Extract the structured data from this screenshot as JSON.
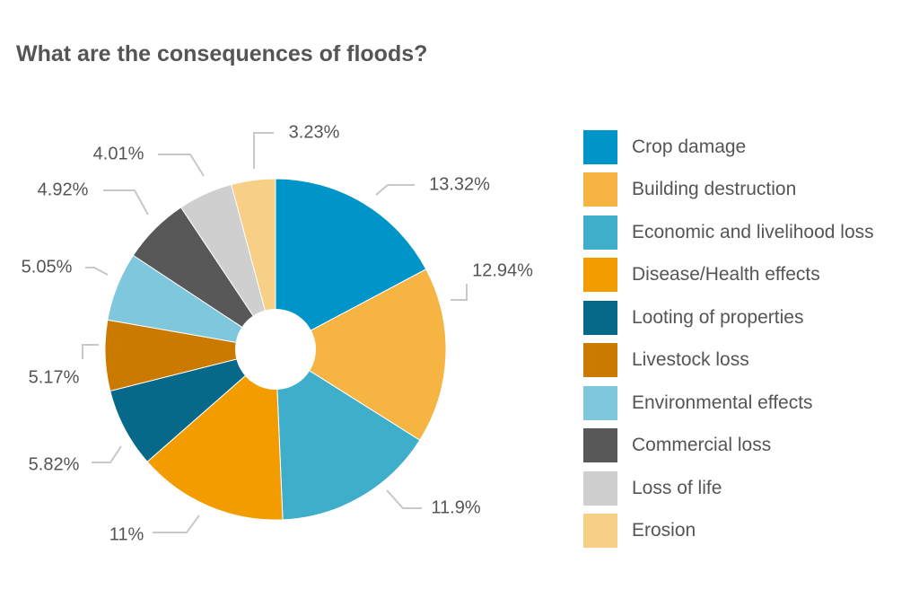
{
  "chart_data": {
    "type": "pie",
    "title": "What are the consequences of floods?",
    "donut": true,
    "legend_position": "right",
    "slices": [
      {
        "label": "Crop damage",
        "value": 13.32,
        "display": "13.32%",
        "color": "#0095c9"
      },
      {
        "label": "Building destruction",
        "value": 12.94,
        "display": "12.94%",
        "color": "#f6b443"
      },
      {
        "label": "Economic and livelihood loss",
        "value": 11.9,
        "display": "11.9%",
        "color": "#3eaeca"
      },
      {
        "label": "Disease/Health effects",
        "value": 11,
        "display": "11%",
        "color": "#f29c00"
      },
      {
        "label": "Looting of properties",
        "value": 5.82,
        "display": "5.82%",
        "color": "#07698a"
      },
      {
        "label": "Livestock loss",
        "value": 5.17,
        "display": "5.17%",
        "color": "#cb7a00"
      },
      {
        "label": "Environmental effects",
        "value": 5.05,
        "display": "5.05%",
        "color": "#7fc7dd"
      },
      {
        "label": "Commercial loss",
        "value": 4.92,
        "display": "4.92%",
        "color": "#585858"
      },
      {
        "label": "Loss of life",
        "value": 4.01,
        "display": "4.01%",
        "color": "#cfcfcf"
      },
      {
        "label": "Erosion",
        "value": 3.23,
        "display": "3.23%",
        "color": "#f8cf86"
      }
    ]
  }
}
